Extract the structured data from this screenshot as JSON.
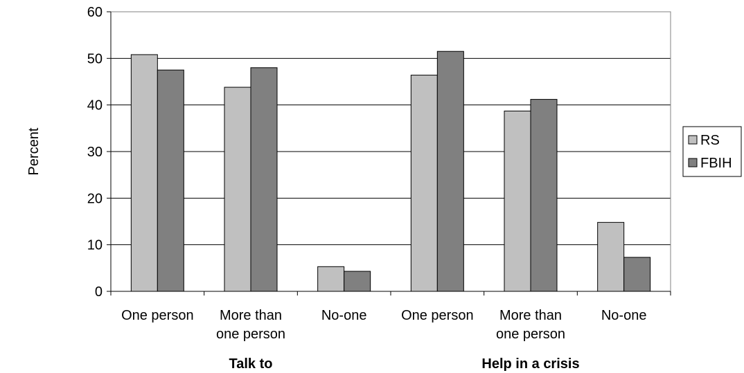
{
  "chart_data": {
    "type": "bar",
    "title": "",
    "xlabel": "",
    "ylabel": "Percent",
    "ylim": [
      0,
      60
    ],
    "yticks": [
      0,
      10,
      20,
      30,
      40,
      50,
      60
    ],
    "grid": true,
    "legend_position": "right",
    "groups": [
      {
        "label": "Talk to",
        "categories": [
          "One person",
          "More than one person",
          "No-one"
        ]
      },
      {
        "label": "Help in a crisis",
        "categories": [
          "One person",
          "More than one person",
          "No-one"
        ]
      }
    ],
    "category_lines": [
      [
        "One person"
      ],
      [
        "More than",
        "one person"
      ],
      [
        "No-one"
      ],
      [
        "One person"
      ],
      [
        "More than",
        "one person"
      ],
      [
        "No-one"
      ]
    ],
    "series": [
      {
        "name": "RS",
        "color": "#c0c0c0",
        "values": [
          50.8,
          43.8,
          5.3,
          46.4,
          38.7,
          14.8
        ]
      },
      {
        "name": "FBIH",
        "color": "#808080",
        "values": [
          47.5,
          48.0,
          4.3,
          51.5,
          41.2,
          7.3
        ]
      }
    ]
  }
}
